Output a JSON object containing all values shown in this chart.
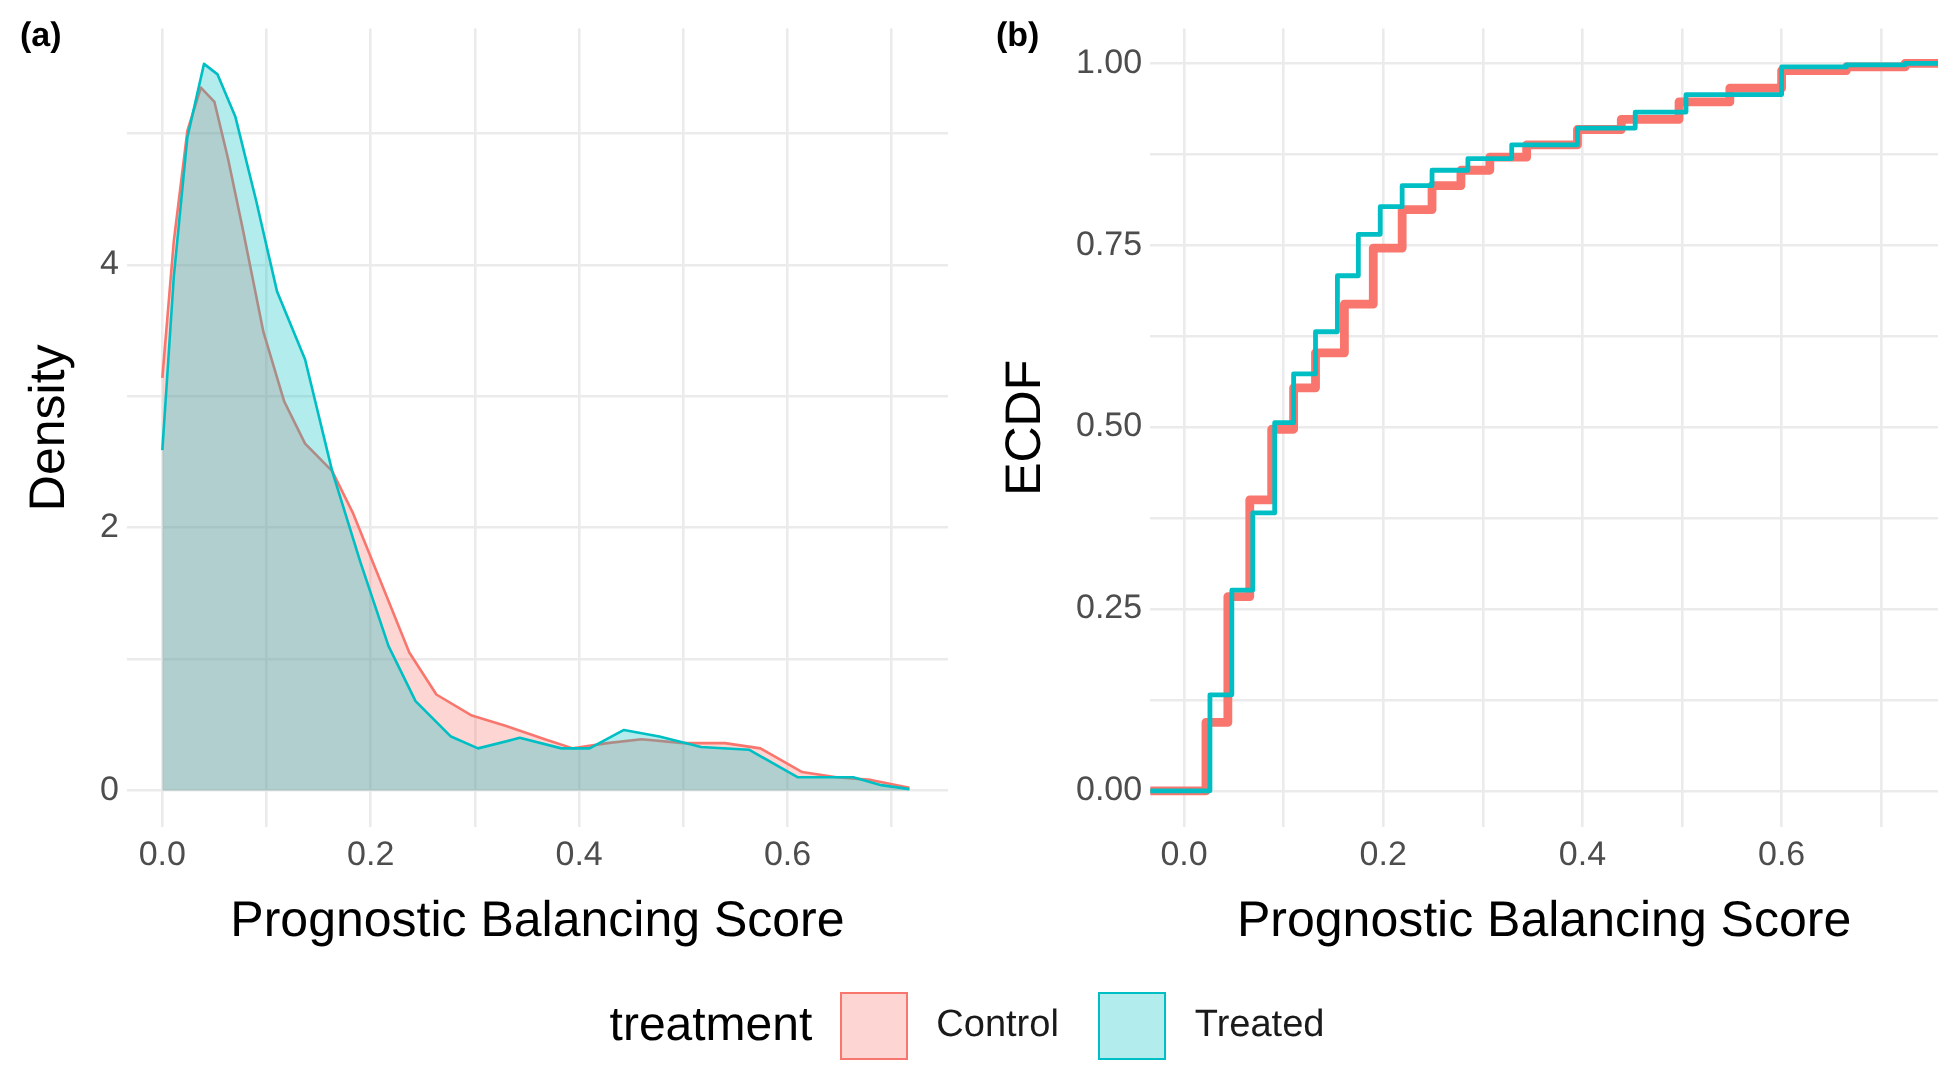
{
  "chart_data": [
    {
      "type": "area",
      "title": "(a)",
      "xlabel": "Prognostic Balancing Score",
      "ylabel": "Density",
      "legend_title": "treatment",
      "legend": "bottom",
      "grid": true,
      "xlim": [
        -0.034,
        0.754
      ],
      "ylim": [
        -0.28,
        5.8
      ],
      "xticks": [
        {
          "value": 0,
          "label": "0.0"
        },
        {
          "value": 0.1,
          "label": null
        },
        0.2,
        {
          "value": 0.3,
          "label": null
        },
        0.4,
        {
          "value": 0.5,
          "label": null
        },
        0.6,
        {
          "value": 0.7,
          "label": null
        }
      ],
      "yticks": [
        0,
        {
          "value": 1,
          "label": null
        },
        2,
        {
          "value": 3,
          "label": null
        },
        4,
        {
          "value": 5,
          "label": null
        }
      ],
      "series": [
        {
          "name": "Control",
          "color": "#f8766d",
          "x": [
            0,
            0.011,
            0.024,
            0.037,
            0.05,
            0.063,
            0.077,
            0.097,
            0.117,
            0.137,
            0.163,
            0.183,
            0.21,
            0.237,
            0.263,
            0.297,
            0.33,
            0.367,
            0.394,
            0.427,
            0.46,
            0.5,
            0.54,
            0.574,
            0.614,
            0.647,
            0.68,
            0.717
          ],
          "values": [
            3.14,
            4.18,
            5.02,
            5.35,
            5.24,
            4.81,
            4.28,
            3.49,
            2.96,
            2.64,
            2.43,
            2.11,
            1.58,
            1.05,
            0.73,
            0.57,
            0.49,
            0.39,
            0.32,
            0.36,
            0.39,
            0.36,
            0.36,
            0.32,
            0.14,
            0.1,
            0.08,
            0.02
          ]
        },
        {
          "name": "Treated",
          "color": "#00bfc4",
          "x": [
            0,
            0.011,
            0.024,
            0.04,
            0.053,
            0.07,
            0.09,
            0.11,
            0.137,
            0.163,
            0.19,
            0.217,
            0.243,
            0.277,
            0.303,
            0.343,
            0.383,
            0.41,
            0.443,
            0.477,
            0.517,
            0.563,
            0.61,
            0.663,
            0.69,
            0.717
          ],
          "values": [
            2.59,
            3.91,
            4.97,
            5.53,
            5.45,
            5.13,
            4.49,
            3.8,
            3.28,
            2.43,
            1.74,
            1.1,
            0.68,
            0.41,
            0.32,
            0.4,
            0.32,
            0.32,
            0.46,
            0.41,
            0.33,
            0.31,
            0.1,
            0.1,
            0.04,
            0.01
          ]
        }
      ]
    },
    {
      "type": "step",
      "title": "(b)",
      "xlabel": "Prognostic Balancing Score",
      "ylabel": "ECDF",
      "grid": true,
      "xlim": [
        -0.034,
        0.757
      ],
      "ylim": [
        -0.05,
        1.048
      ],
      "xticks": [
        {
          "value": 0,
          "label": "0.0"
        },
        {
          "value": 0.1,
          "label": null
        },
        0.2,
        {
          "value": 0.3,
          "label": null
        },
        0.4,
        {
          "value": 0.5,
          "label": null
        },
        0.6,
        {
          "value": 0.7,
          "label": null
        }
      ],
      "yticks": [
        {
          "value": 0,
          "label": "0.00"
        },
        {
          "value": 0.125,
          "label": null
        },
        {
          "value": 0.25,
          "label": "0.25"
        },
        {
          "value": 0.375,
          "label": null
        },
        {
          "value": 0.5,
          "label": "0.50"
        },
        {
          "value": 0.625,
          "label": null
        },
        {
          "value": 0.75,
          "label": "0.75"
        },
        {
          "value": 0.875,
          "label": null
        },
        {
          "value": 1,
          "label": "1.00"
        }
      ],
      "series": [
        {
          "color": "#f8766d",
          "x": [
            -0.034,
            0.007,
            0.022,
            0.044,
            0.066,
            0.088,
            0.11,
            0.132,
            0.161,
            0.19,
            0.219,
            0.249,
            0.278,
            0.307,
            0.344,
            0.395,
            0.439,
            0.497,
            0.548,
            0.6,
            0.665,
            0.724,
            0.757
          ],
          "values": [
            0,
            0,
            0.094,
            0.267,
            0.4,
            0.497,
            0.554,
            0.602,
            0.669,
            0.746,
            0.799,
            0.832,
            0.853,
            0.871,
            0.888,
            0.909,
            0.923,
            0.947,
            0.966,
            0.99,
            0.995,
            1.0,
            1.0
          ]
        },
        {
          "color": "#00bfc4",
          "x": [
            -0.034,
            0.007,
            0.026,
            0.048,
            0.069,
            0.091,
            0.11,
            0.132,
            0.154,
            0.175,
            0.197,
            0.219,
            0.249,
            0.285,
            0.329,
            0.395,
            0.453,
            0.504,
            0.6,
            0.665,
            0.724,
            0.757
          ],
          "values": [
            0,
            0,
            0.132,
            0.276,
            0.382,
            0.506,
            0.573,
            0.631,
            0.708,
            0.765,
            0.803,
            0.832,
            0.853,
            0.869,
            0.888,
            0.911,
            0.933,
            0.957,
            0.995,
            0.998,
            1.0,
            1.0
          ]
        }
      ]
    }
  ]
}
